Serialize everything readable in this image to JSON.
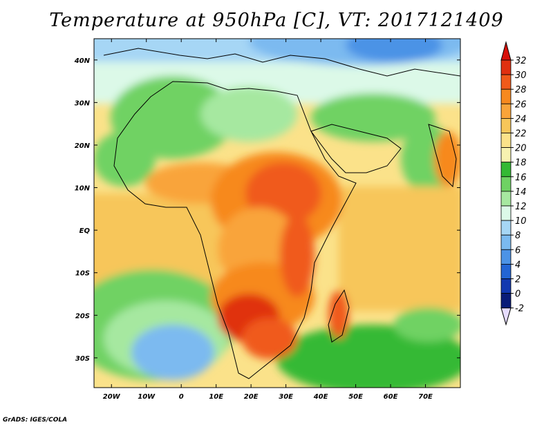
{
  "title": "Temperature at 950hPa [C], VT: 2017121409",
  "footer": "GrADS: IGES/COLA",
  "map": {
    "lon_range": [
      -25,
      80
    ],
    "lat_range": [
      -37,
      45
    ],
    "lat_ticks": [
      {
        "value": 40,
        "label": "40N"
      },
      {
        "value": 30,
        "label": "30N"
      },
      {
        "value": 20,
        "label": "20N"
      },
      {
        "value": 10,
        "label": "10N"
      },
      {
        "value": 0,
        "label": "EQ"
      },
      {
        "value": -10,
        "label": "10S"
      },
      {
        "value": -20,
        "label": "20S"
      },
      {
        "value": -30,
        "label": "30S"
      }
    ],
    "lon_ticks": [
      {
        "value": -20,
        "label": "20W"
      },
      {
        "value": -10,
        "label": "10W"
      },
      {
        "value": 0,
        "label": "0"
      },
      {
        "value": 10,
        "label": "10E"
      },
      {
        "value": 20,
        "label": "20E"
      },
      {
        "value": 30,
        "label": "30E"
      },
      {
        "value": 40,
        "label": "40E"
      },
      {
        "value": 50,
        "label": "50E"
      },
      {
        "value": 60,
        "label": "60E"
      },
      {
        "value": 70,
        "label": "70E"
      }
    ]
  },
  "colorbar": {
    "levels": [
      "32",
      "30",
      "28",
      "26",
      "24",
      "22",
      "20",
      "18",
      "16",
      "14",
      "12",
      "10",
      "8",
      "6",
      "4",
      "2",
      "0",
      "-2"
    ],
    "colors": [
      "#e03010",
      "#f05a1a",
      "#f7891e",
      "#f9a43a",
      "#f7c65a",
      "#fbe28a",
      "#f7f2b0",
      "#34b934",
      "#6fd263",
      "#a6e8a0",
      "#dcf9e8",
      "#a6d6f5",
      "#7bbaf0",
      "#4c93e6",
      "#2365d4",
      "#1238b0",
      "#0a1c78"
    ],
    "top_arrow_color": "#d8100a",
    "bottom_arrow_color": "#e6dcff"
  }
}
